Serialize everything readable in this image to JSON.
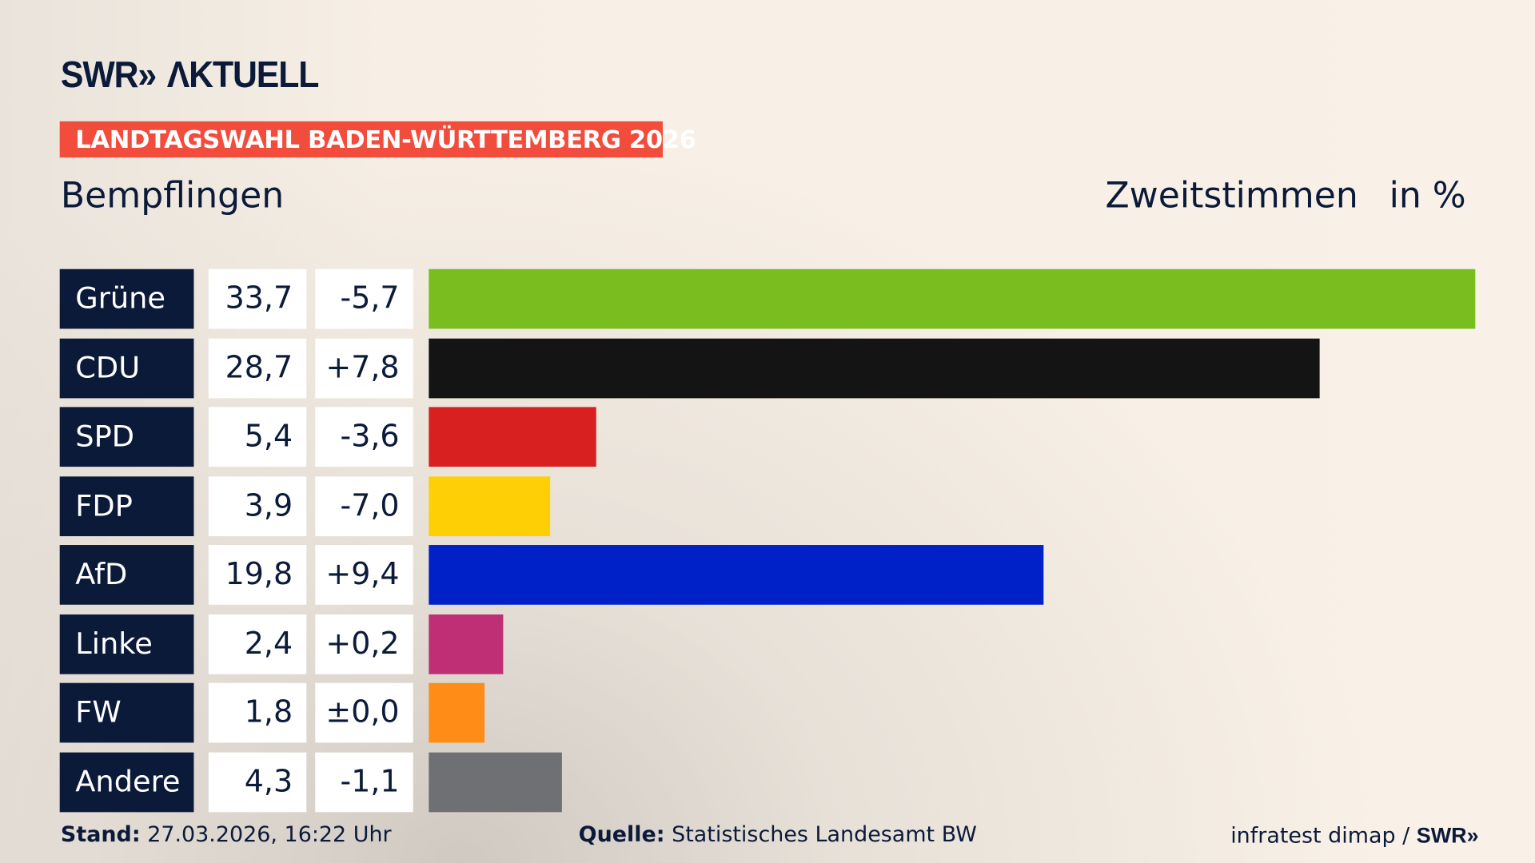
{
  "brand": {
    "logo": "SWR» AKTUELL",
    "small_logo": "SWR»"
  },
  "banner": "LANDTAGSWAHL BADEN-WÜRTTEMBERG 2026",
  "place": "Bempflingen",
  "metric": "Zweitstimmen",
  "unit": "in %",
  "chart_data": {
    "type": "bar",
    "orientation": "horizontal",
    "categories": [
      "Grüne",
      "CDU",
      "SPD",
      "FDP",
      "AfD",
      "Linke",
      "FW",
      "Andere"
    ],
    "values": [
      33.7,
      28.7,
      5.4,
      3.9,
      19.8,
      2.4,
      1.8,
      4.3
    ],
    "value_labels": [
      "33,7",
      "28,7",
      "5,4",
      "3,9",
      "19,8",
      "2,4",
      "1,8",
      "4,3"
    ],
    "change_labels": [
      "-5,7",
      "+7,8",
      "-3,6",
      "-7,0",
      "+9,4",
      "+0,2",
      "±0,0",
      "-1,1"
    ],
    "changes": [
      -5.7,
      7.8,
      -3.6,
      -7.0,
      9.4,
      0.2,
      0.0,
      -1.1
    ],
    "colors": [
      "#7abd1e",
      "#141414",
      "#d7201f",
      "#ffcf06",
      "#0020c8",
      "#be2f76",
      "#ff8c16",
      "#6f7073"
    ],
    "xlim": [
      0,
      33.7
    ]
  },
  "footer": {
    "stand_label": "Stand:",
    "stand_value": "27.03.2026, 16:22 Uhr",
    "quelle_label": "Quelle:",
    "quelle_value": "Statistisches Landesamt BW",
    "credit": "infratest dimap /"
  }
}
